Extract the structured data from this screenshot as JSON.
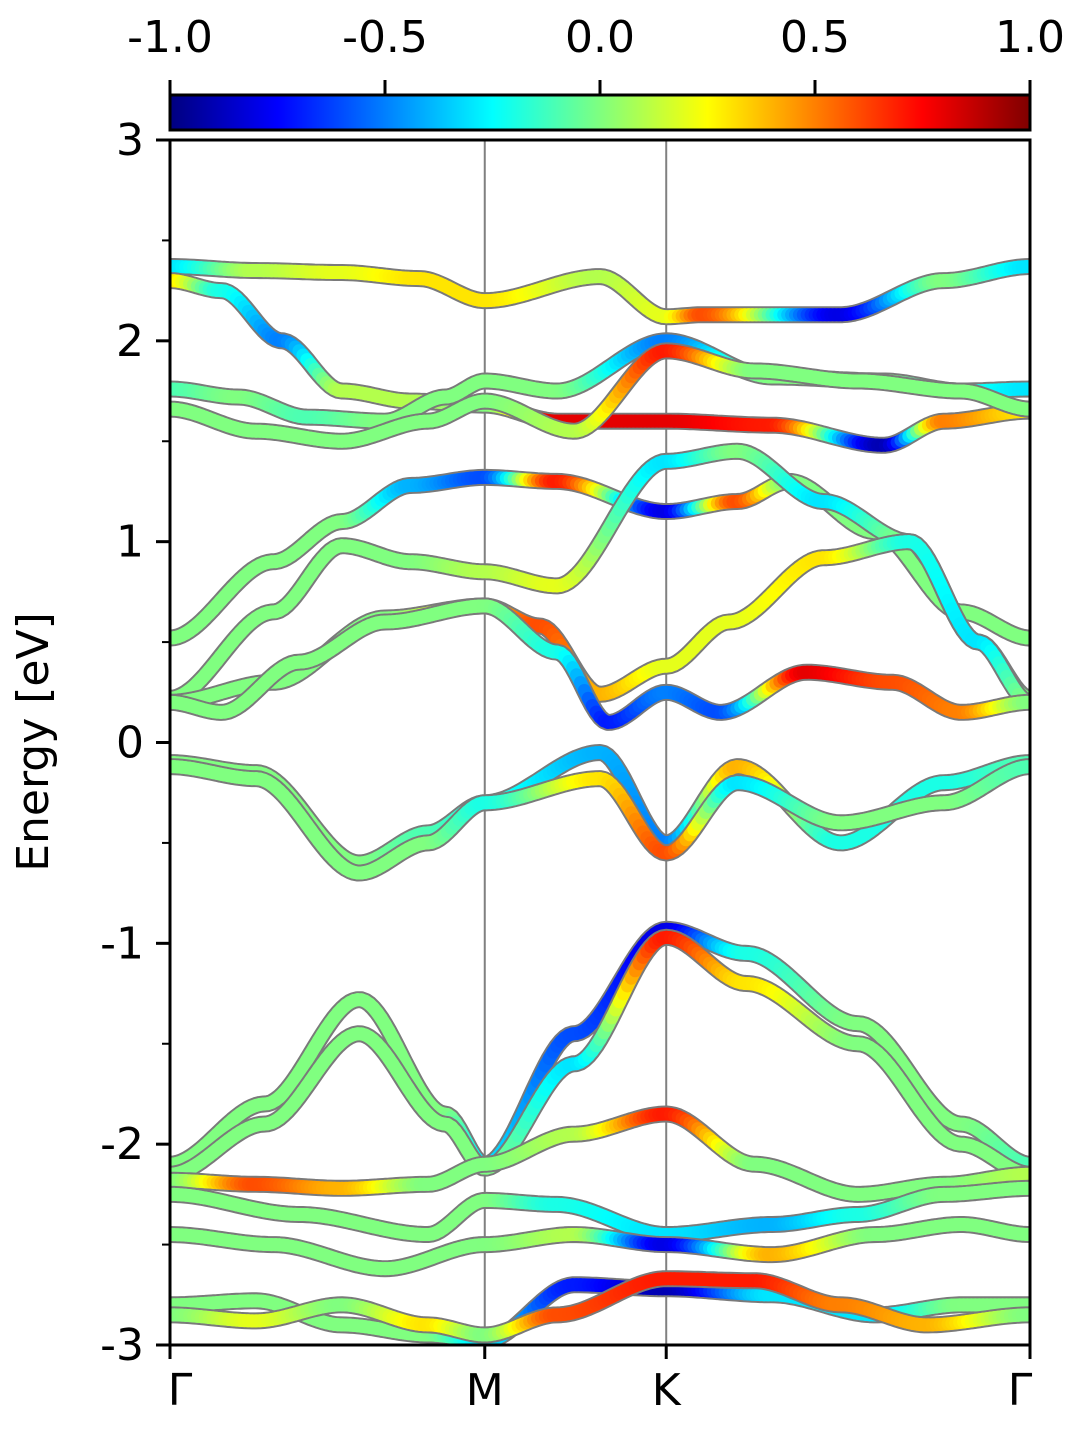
{
  "chart_data": {
    "type": "line",
    "xlabel": "",
    "ylabel": "Energy [eV]",
    "ylim": [
      -3,
      3
    ],
    "xlim": [
      0,
      1
    ],
    "y_ticks": [
      -3,
      -2,
      -1,
      0,
      1,
      2,
      3
    ],
    "y_tick_labels": [
      "-3",
      "-2",
      "-1",
      "0",
      "1",
      "2",
      "3"
    ],
    "y_minor_ticks": [
      -2.5,
      -1.5,
      -0.5,
      0.5,
      1.5,
      2.5
    ],
    "x_ticks": [
      0,
      0.366,
      0.577,
      1
    ],
    "x_tick_labels": [
      "Γ",
      "M",
      "K",
      "Γ"
    ],
    "k_separators": [
      0.366,
      0.577
    ],
    "colorbar": {
      "colormap": "jet",
      "range": [
        -1.0,
        1.0
      ],
      "ticks": [
        -1.0,
        -0.5,
        0.0,
        0.5,
        1.0
      ],
      "tick_labels": [
        "-1.0",
        "-0.5",
        "0.0",
        "0.5",
        "1.0"
      ],
      "location": "top"
    },
    "series": [
      {
        "x": [
          0,
          0.1,
          0.2,
          0.29,
          0.366,
          0.5,
          0.577,
          0.62,
          0.78,
          0.9,
          1
        ],
        "y": [
          2.37,
          2.35,
          2.34,
          2.31,
          2.2,
          2.32,
          2.12,
          2.13,
          2.13,
          2.3,
          2.37
        ],
        "c": [
          -0.3,
          0.1,
          0.2,
          0.3,
          0.3,
          0.1,
          0.2,
          0.6,
          -0.8,
          0.0,
          -0.3
        ]
      },
      {
        "x": [
          0,
          0.06,
          0.13,
          0.2,
          0.28,
          0.366,
          0.45,
          0.577,
          0.7,
          0.83,
          0.9,
          1
        ],
        "y": [
          2.3,
          2.25,
          2.0,
          1.75,
          1.7,
          1.68,
          1.6,
          1.6,
          1.58,
          1.48,
          1.6,
          1.65
        ],
        "c": [
          0.3,
          -0.2,
          -0.5,
          0.1,
          0.1,
          0.0,
          0.8,
          0.8,
          0.7,
          -0.9,
          0.5,
          0.3
        ]
      },
      {
        "x": [
          0,
          0.08,
          0.16,
          0.25,
          0.32,
          0.366,
          0.45,
          0.577,
          0.7,
          0.83,
          0.92,
          1
        ],
        "y": [
          1.76,
          1.72,
          1.62,
          1.6,
          1.72,
          1.8,
          1.75,
          2.0,
          1.82,
          1.8,
          1.75,
          1.76
        ],
        "c": [
          -0.1,
          0.0,
          -0.1,
          0.0,
          0.0,
          0.0,
          0.0,
          -0.5,
          0.0,
          0.0,
          -0.2,
          -0.3
        ]
      },
      {
        "x": [
          0,
          0.1,
          0.2,
          0.3,
          0.366,
          0.47,
          0.577,
          0.68,
          0.8,
          0.92,
          1
        ],
        "y": [
          1.66,
          1.55,
          1.5,
          1.6,
          1.7,
          1.55,
          1.95,
          1.85,
          1.8,
          1.75,
          1.66
        ],
        "c": [
          0.0,
          0.0,
          0.0,
          0.0,
          0.0,
          0.1,
          0.7,
          0.0,
          0.0,
          0.0,
          0.0
        ]
      },
      {
        "x": [
          0,
          0.12,
          0.2,
          0.28,
          0.366,
          0.45,
          0.577,
          0.66,
          0.72,
          0.82,
          0.92,
          1
        ],
        "y": [
          0.52,
          0.9,
          1.1,
          1.28,
          1.32,
          1.3,
          1.15,
          1.2,
          1.3,
          1.05,
          0.65,
          0.52
        ],
        "c": [
          0.0,
          0.0,
          0.0,
          -0.4,
          -0.6,
          0.7,
          -0.8,
          0.6,
          0.0,
          0.0,
          0.0,
          0.0
        ]
      },
      {
        "x": [
          0,
          0.12,
          0.2,
          0.28,
          0.366,
          0.45,
          0.577,
          0.66,
          0.76,
          0.86,
          0.94,
          1
        ],
        "y": [
          0.22,
          0.65,
          0.98,
          0.9,
          0.85,
          0.78,
          1.4,
          1.45,
          1.2,
          1.0,
          0.5,
          0.22
        ],
        "c": [
          0.0,
          0.0,
          0.0,
          0.0,
          0.1,
          0.2,
          -0.3,
          0.0,
          -0.3,
          0.0,
          -0.3,
          0.0
        ]
      },
      {
        "x": [
          0,
          0.12,
          0.25,
          0.366,
          0.43,
          0.5,
          0.577,
          0.65,
          0.76,
          0.86,
          0.94,
          1
        ],
        "y": [
          0.2,
          0.3,
          0.62,
          0.68,
          0.58,
          0.24,
          0.38,
          0.6,
          0.92,
          1.0,
          0.5,
          0.2
        ],
        "c": [
          0.0,
          0.0,
          0.0,
          0.4,
          0.6,
          0.4,
          0.2,
          0.2,
          0.3,
          -0.2,
          -0.3,
          0.0
        ]
      },
      {
        "x": [
          0,
          0.06,
          0.15,
          0.25,
          0.366,
          0.45,
          0.51,
          0.577,
          0.64,
          0.74,
          0.84,
          0.92,
          1
        ],
        "y": [
          0.2,
          0.15,
          0.4,
          0.6,
          0.68,
          0.45,
          0.1,
          0.25,
          0.15,
          0.35,
          0.3,
          0.15,
          0.2
        ],
        "c": [
          0.0,
          0.0,
          0.0,
          0.0,
          0.0,
          -0.2,
          -0.7,
          -0.5,
          -0.6,
          0.8,
          0.6,
          0.5,
          0.0
        ]
      },
      {
        "x": [
          0,
          0.1,
          0.22,
          0.3,
          0.366,
          0.5,
          0.577,
          0.66,
          0.78,
          0.9,
          1
        ],
        "y": [
          -0.1,
          -0.15,
          -0.6,
          -0.45,
          -0.3,
          -0.05,
          -0.5,
          -0.12,
          -0.5,
          -0.2,
          -0.1
        ],
        "c": [
          0.0,
          0.0,
          0.0,
          -0.1,
          -0.2,
          -0.4,
          -0.5,
          0.4,
          -0.2,
          -0.2,
          -0.1
        ]
      },
      {
        "x": [
          0,
          0.1,
          0.22,
          0.3,
          0.366,
          0.5,
          0.577,
          0.66,
          0.78,
          0.9,
          1
        ],
        "y": [
          -0.12,
          -0.18,
          -0.65,
          -0.5,
          -0.3,
          -0.18,
          -0.55,
          -0.2,
          -0.4,
          -0.3,
          -0.12
        ],
        "c": [
          0.0,
          0.0,
          0.0,
          0.0,
          -0.2,
          0.3,
          0.6,
          -0.3,
          0.0,
          0.0,
          -0.1
        ]
      },
      {
        "x": [
          0,
          0.11,
          0.22,
          0.32,
          0.366,
          0.47,
          0.577,
          0.67,
          0.8,
          0.92,
          1
        ],
        "y": [
          -2.1,
          -1.8,
          -1.28,
          -1.85,
          -2.1,
          -1.45,
          -0.93,
          -1.05,
          -1.4,
          -1.9,
          -2.1
        ],
        "c": [
          0.0,
          0.0,
          0.0,
          0.0,
          -0.3,
          -0.6,
          -0.8,
          -0.2,
          0.0,
          0.0,
          -0.1
        ]
      },
      {
        "x": [
          0,
          0.11,
          0.22,
          0.32,
          0.366,
          0.47,
          0.577,
          0.67,
          0.8,
          0.92,
          1
        ],
        "y": [
          -2.15,
          -1.9,
          -1.45,
          -1.9,
          -2.12,
          -1.6,
          -0.97,
          -1.2,
          -1.5,
          -2.0,
          -2.15
        ],
        "c": [
          0.0,
          0.0,
          0.0,
          0.0,
          0.0,
          -0.3,
          0.7,
          0.3,
          0.0,
          0.0,
          0.0
        ]
      },
      {
        "x": [
          0,
          0.1,
          0.2,
          0.3,
          0.366,
          0.47,
          0.577,
          0.68,
          0.8,
          0.9,
          1
        ],
        "y": [
          -2.18,
          -2.2,
          -2.22,
          -2.2,
          -2.1,
          -1.95,
          -1.85,
          -2.1,
          -2.25,
          -2.2,
          -2.15
        ],
        "c": [
          0.0,
          0.6,
          0.4,
          0.0,
          0.0,
          0.1,
          0.7,
          0.0,
          0.0,
          0.0,
          0.1
        ]
      },
      {
        "x": [
          0,
          0.15,
          0.3,
          0.366,
          0.45,
          0.577,
          0.7,
          0.8,
          0.9,
          1
        ],
        "y": [
          -2.25,
          -2.35,
          -2.45,
          -2.28,
          -2.3,
          -2.45,
          -2.4,
          -2.35,
          -2.25,
          -2.22
        ],
        "c": [
          0.0,
          0.0,
          0.0,
          0.0,
          -0.2,
          -0.3,
          -0.4,
          -0.2,
          0.0,
          0.0
        ]
      },
      {
        "x": [
          0,
          0.12,
          0.25,
          0.366,
          0.47,
          0.577,
          0.7,
          0.82,
          0.92,
          1
        ],
        "y": [
          -2.45,
          -2.5,
          -2.62,
          -2.5,
          -2.45,
          -2.5,
          -2.55,
          -2.45,
          -2.4,
          -2.45
        ],
        "c": [
          0.0,
          0.0,
          0.0,
          0.0,
          0.1,
          -0.8,
          0.4,
          0.0,
          0.0,
          0.0
        ]
      },
      {
        "x": [
          0,
          0.1,
          0.2,
          0.3,
          0.366,
          0.47,
          0.577,
          0.7,
          0.82,
          0.92,
          1
        ],
        "y": [
          -2.8,
          -2.78,
          -2.9,
          -2.95,
          -2.98,
          -2.7,
          -2.72,
          -2.75,
          -2.85,
          -2.8,
          -2.8
        ],
        "c": [
          0.0,
          0.0,
          0.0,
          0.0,
          -0.3,
          -0.7,
          -0.9,
          -0.3,
          -0.3,
          0.0,
          0.0
        ]
      },
      {
        "x": [
          0,
          0.1,
          0.2,
          0.3,
          0.366,
          0.45,
          0.577,
          0.68,
          0.78,
          0.88,
          1
        ],
        "y": [
          -2.85,
          -2.88,
          -2.8,
          -2.9,
          -2.95,
          -2.85,
          -2.67,
          -2.68,
          -2.8,
          -2.9,
          -2.85
        ],
        "c": [
          0.0,
          0.2,
          0.0,
          0.3,
          0.0,
          0.6,
          0.7,
          0.7,
          0.5,
          0.4,
          0.0
        ]
      }
    ]
  }
}
